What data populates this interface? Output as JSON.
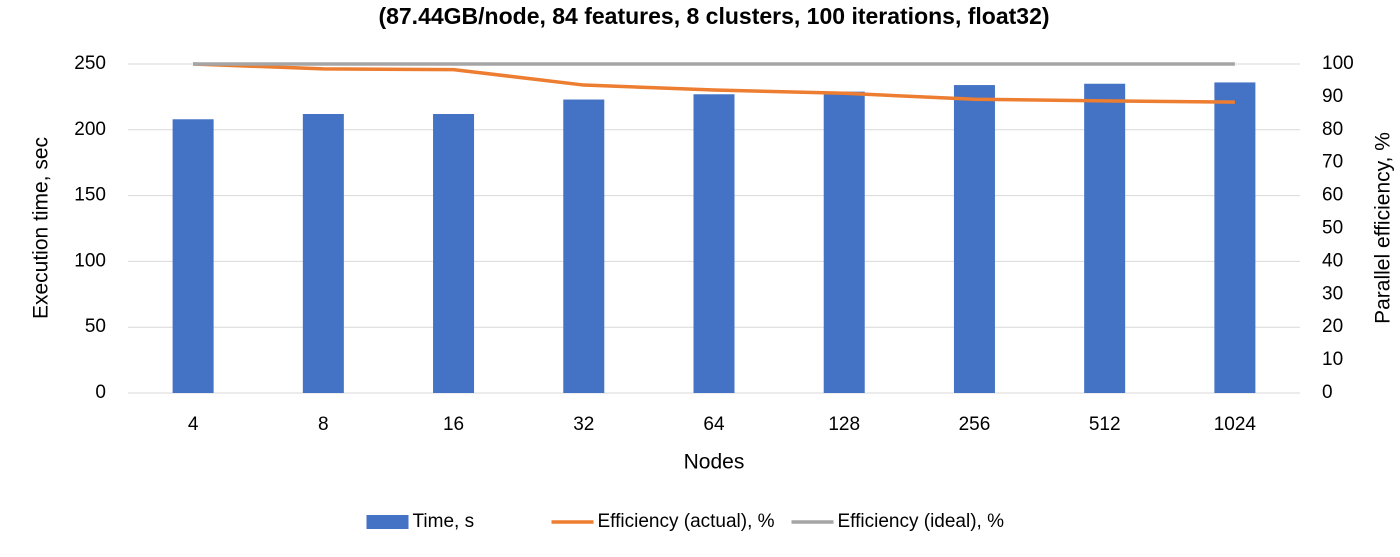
{
  "chart_data": {
    "type": "combo",
    "title": "(87.44GB/node, 84 features, 8 clusters, 100 iterations, float32)",
    "x_label": "Nodes",
    "y_label": "Execution time, sec",
    "y2_label": "Parallel efficiency, %",
    "categories": [
      "4",
      "8",
      "16",
      "32",
      "64",
      "128",
      "256",
      "512",
      "1024"
    ],
    "series": [
      {
        "name": "Time, s",
        "type": "bar",
        "color": "#4472c4",
        "values": [
          208,
          212,
          212,
          223,
          227,
          229,
          234,
          235,
          236
        ]
      },
      {
        "name": "Efficiency (actual), %",
        "type": "line",
        "axis": "y2",
        "color": "#ed7d31",
        "values": [
          100,
          98.5,
          98.3,
          93.6,
          92.1,
          91.1,
          89.3,
          88.8,
          88.4
        ]
      },
      {
        "name": "Efficiency (ideal), %",
        "type": "line",
        "axis": "y2",
        "color": "#a5a5a5",
        "values": [
          100,
          100,
          100,
          100,
          100,
          100,
          100,
          100,
          100
        ]
      }
    ],
    "ylim": [
      0,
      250
    ],
    "yticks": [
      0,
      50,
      100,
      150,
      200,
      250
    ],
    "y2lim": [
      0,
      100
    ],
    "y2ticks": [
      0,
      10,
      20,
      30,
      40,
      50,
      60,
      70,
      80,
      90,
      100
    ],
    "grid": true,
    "legend": "bottom"
  }
}
